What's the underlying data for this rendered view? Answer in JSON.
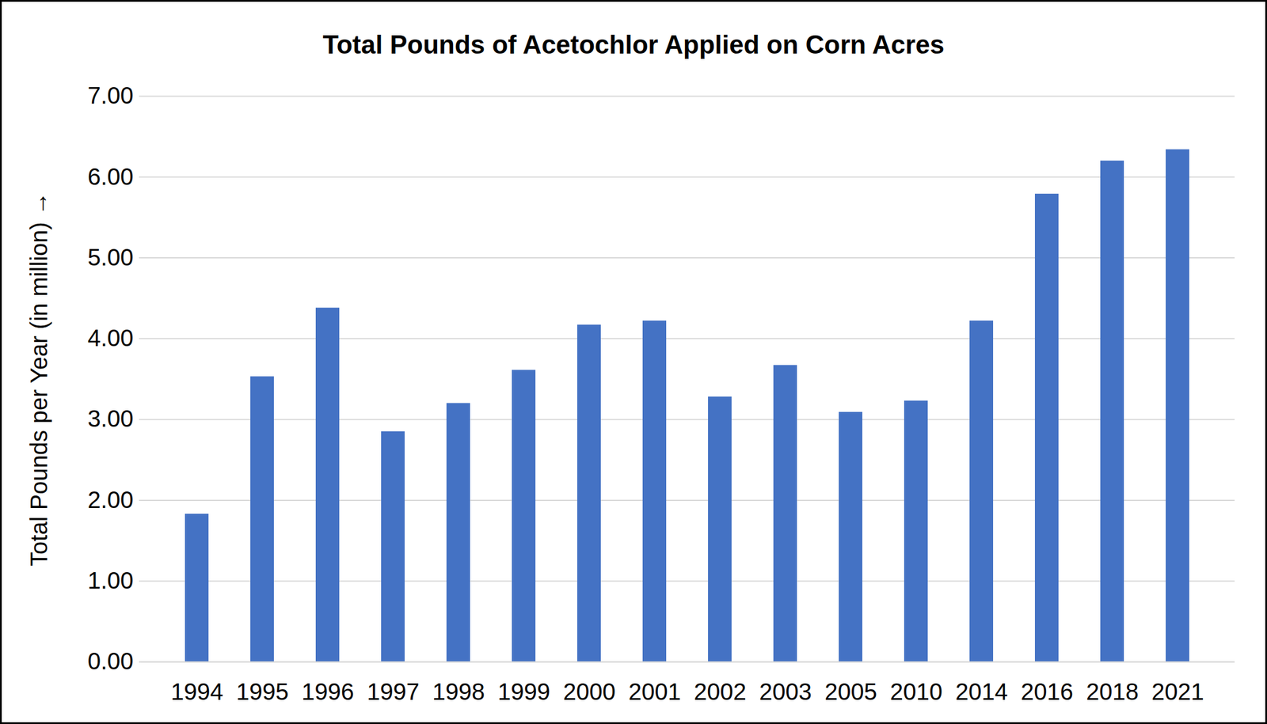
{
  "chart_data": {
    "type": "bar",
    "title": "Total Pounds of Acetochlor Applied on Corn Acres",
    "ylabel": "Total Pounds per Year (in million)",
    "categories": [
      "1994",
      "1995",
      "1996",
      "1997",
      "1998",
      "1999",
      "2000",
      "2001",
      "2002",
      "2003",
      "2005",
      "2010",
      "2014",
      "2016",
      "2018",
      "2021"
    ],
    "values": [
      1.83,
      3.53,
      4.38,
      2.85,
      3.2,
      3.61,
      4.17,
      4.22,
      3.28,
      3.67,
      3.09,
      3.23,
      4.22,
      5.79,
      6.2,
      6.34
    ],
    "color": "#4472c4",
    "ylim": [
      0,
      7
    ],
    "yticks": [
      {
        "value": 0,
        "label": "0.00"
      },
      {
        "value": 1,
        "label": "1.00"
      },
      {
        "value": 2,
        "label": "2.00"
      },
      {
        "value": 3,
        "label": "3.00"
      },
      {
        "value": 4,
        "label": "4.00"
      },
      {
        "value": 5,
        "label": "5.00"
      },
      {
        "value": 6,
        "label": "6.00"
      },
      {
        "value": 7,
        "label": "7.00"
      }
    ],
    "grid": true
  }
}
